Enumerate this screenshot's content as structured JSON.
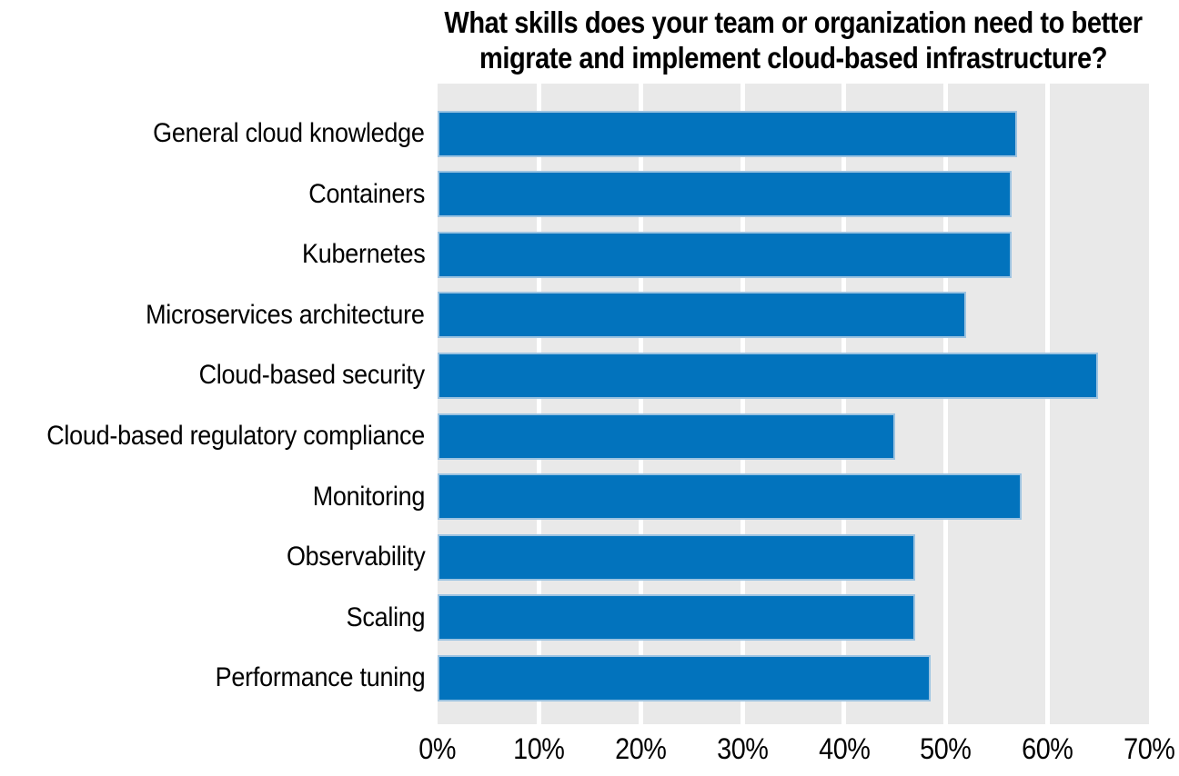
{
  "title": {
    "line1": "What skills does your team or organization need to better",
    "line2": "migrate and implement cloud-based infrastructure?",
    "full": "What skills does your team or organization need to better migrate and implement cloud-based infrastructure?"
  },
  "chart_data": {
    "type": "bar",
    "orientation": "horizontal",
    "title": "What skills does your team or organization need to better migrate and implement cloud-based infrastructure?",
    "categories": [
      "General cloud knowledge",
      "Containers",
      "Kubernetes",
      "Microservices architecture",
      "Cloud-based security",
      "Cloud-based regulatory compliance",
      "Monitoring",
      "Observability",
      "Scaling",
      "Performance tuning"
    ],
    "values": [
      57,
      56.5,
      56.5,
      52,
      65,
      45,
      57.5,
      47,
      47,
      48.5
    ],
    "unit": "%",
    "xlabel": "",
    "ylabel": "",
    "xlim": [
      0,
      70
    ],
    "xtick_step": 10,
    "xticks": [
      "0%",
      "10%",
      "20%",
      "30%",
      "40%",
      "50%",
      "60%",
      "70%"
    ],
    "grid": "vertical white gridlines on gray panel",
    "legend": "none",
    "colors": {
      "bar_fill": "#0273bd",
      "bar_edge": "#9cc3e1",
      "plot_background": "#e9e9e9",
      "page_background": "#ffffff",
      "text": "#000000"
    }
  }
}
